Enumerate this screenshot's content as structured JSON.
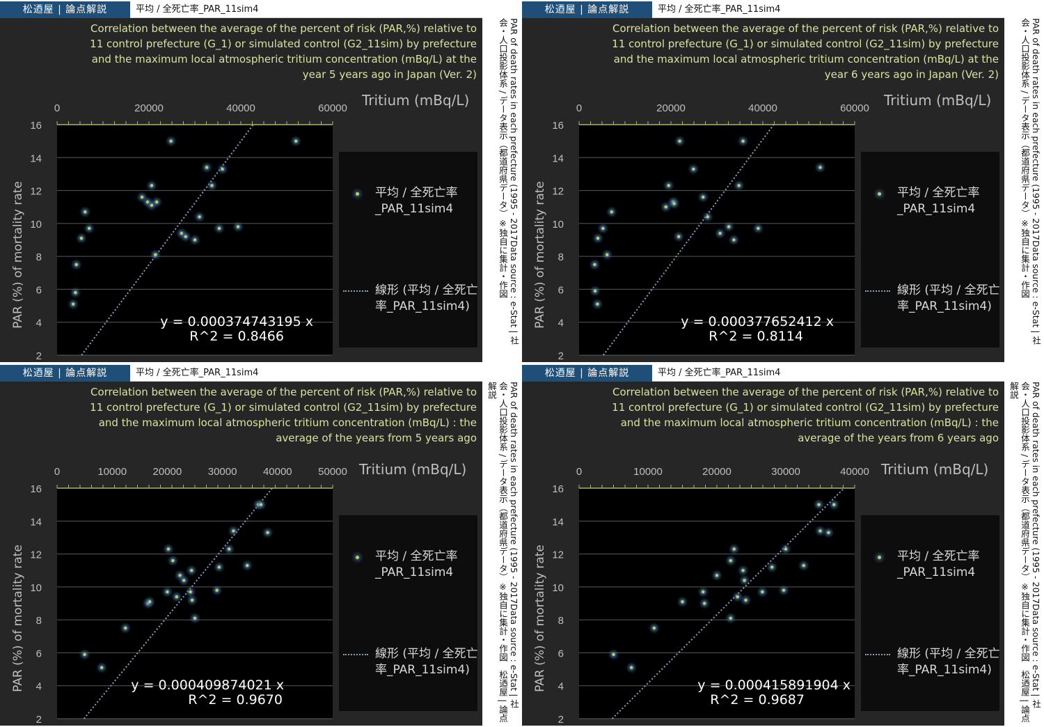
{
  "brand": "松迺屋 | 論点解説",
  "header_title": "平均 / 全死亡率_PAR_11sim4",
  "side_text_a": "PAR of death rates in each prefecture (1995 - 2017Data source : e-Stat | 社会・人口投影体系 / データ表示（都道府県データ）※独自に集計・作図",
  "side_text_b": "PAR of death rates in each prefecture (1995 - 2017Data source : e-Stat | 社会・人口投影体系 / データ表示（都道府県データ）※独自に集計・作図　松迺屋 | 論点解説",
  "legend_series": "平均 / 全死亡率_PAR_11sim4",
  "legend_trend": "線形 (平均 / 全死亡率_PAR_11sim4)",
  "colors": {
    "marker": "#a6d96a",
    "glow": "#4e6fa0",
    "trend": "#8fa0c0",
    "title": "#d7e4a0",
    "plot_bg": "#000000"
  },
  "chart_data": [
    {
      "type": "scatter",
      "title": "Correlation between the average of the percent of risk (PAR,%) relative to 11 control prefecture (G_1) or simulated control (G2_11sim) by prefecture and the maximum local atmospheric tritium concentration (mBq/L) at the year 5 years ago in Japan (Ver. 2)",
      "xlabel": "Tritium (mBq/L)",
      "ylabel": "PAR (%) of mortality rate",
      "xlim": [
        0,
        60000
      ],
      "ylim": [
        2,
        16
      ],
      "xticks": [
        "0",
        "20000",
        "40000",
        "60000"
      ],
      "yticks": [
        "2",
        "4",
        "6",
        "8",
        "10",
        "12",
        "14",
        "16"
      ],
      "trend_equation": "y = 0.000374743195 x",
      "r_squared": "R^2 = 0.8466",
      "slope": 0.000374743195,
      "points": [
        [
          3500,
          5.1
        ],
        [
          4000,
          5.8
        ],
        [
          4200,
          7.5
        ],
        [
          5300,
          9.1
        ],
        [
          6100,
          10.7
        ],
        [
          7000,
          9.7
        ],
        [
          18500,
          11.6
        ],
        [
          19700,
          11.3
        ],
        [
          20600,
          11.1
        ],
        [
          20600,
          12.3
        ],
        [
          21700,
          11.3
        ],
        [
          21400,
          8.1
        ],
        [
          24800,
          15.0
        ],
        [
          27100,
          9.4
        ],
        [
          28000,
          9.2
        ],
        [
          30000,
          9.0
        ],
        [
          31000,
          10.4
        ],
        [
          32600,
          13.4
        ],
        [
          33700,
          12.3
        ],
        [
          35300,
          9.7
        ],
        [
          36000,
          13.3
        ],
        [
          39400,
          9.8
        ],
        [
          52000,
          15.0
        ]
      ]
    },
    {
      "type": "scatter",
      "title": "Correlation between the average of the percent of risk (PAR,%) relative to 11 control prefecture (G_1) or simulated control (G2_11sim) by prefecture and the maximum local atmospheric tritium concentration (mBq/L) at the year 6 years ago in Japan (Ver. 2)",
      "xlabel": "Tritium (mBq/L)",
      "ylabel": "PAR (%) of mortality rate",
      "xlim": [
        0,
        60000
      ],
      "ylim": [
        2,
        16
      ],
      "xticks": [
        "0",
        "20000",
        "40000",
        "60000"
      ],
      "yticks": [
        "2",
        "4",
        "6",
        "8",
        "10",
        "12",
        "14",
        "16"
      ],
      "trend_equation": "y = 0.000377652412 x",
      "r_squared": "R^2 = 0.8114",
      "slope": 0.000377652412,
      "points": [
        [
          3400,
          7.5
        ],
        [
          3500,
          5.9
        ],
        [
          4000,
          5.1
        ],
        [
          4100,
          9.1
        ],
        [
          5200,
          9.7
        ],
        [
          6100,
          8.1
        ],
        [
          7100,
          10.7
        ],
        [
          18900,
          11.0
        ],
        [
          19500,
          12.3
        ],
        [
          20500,
          11.3
        ],
        [
          20700,
          11.2
        ],
        [
          21700,
          9.2
        ],
        [
          21900,
          15.0
        ],
        [
          24900,
          13.3
        ],
        [
          27000,
          11.6
        ],
        [
          28000,
          10.4
        ],
        [
          30700,
          9.4
        ],
        [
          32600,
          9.8
        ],
        [
          33700,
          9.0
        ],
        [
          34800,
          12.3
        ],
        [
          35700,
          15.0
        ],
        [
          39000,
          9.7
        ],
        [
          52500,
          13.4
        ]
      ]
    },
    {
      "type": "scatter",
      "title": "Correlation between the average of the percent of risk (PAR,%) relative to 11 control prefecture (G_1) or simulated control (G2_11sim) by prefecture and the maximum local atmospheric tritium concentration (mBq/L) : the average of the years from 5 years ago",
      "xlabel": "Tritium (mBq/L)",
      "ylabel": "PAR (%) of mortality rate",
      "xlim": [
        0,
        50000
      ],
      "ylim": [
        2,
        16
      ],
      "xticks": [
        "0",
        "10000",
        "20000",
        "30000",
        "40000",
        "50000"
      ],
      "yticks": [
        "2",
        "4",
        "6",
        "8",
        "10",
        "12",
        "14",
        "16"
      ],
      "trend_equation": "y = 0.000409874021 x",
      "r_squared": "R^2 = 0.9670",
      "slope": 0.000409874021,
      "points": [
        [
          5000,
          5.9
        ],
        [
          8100,
          5.1
        ],
        [
          12400,
          7.5
        ],
        [
          16500,
          9.0
        ],
        [
          16800,
          9.1
        ],
        [
          20000,
          9.7
        ],
        [
          20200,
          12.3
        ],
        [
          21000,
          11.6
        ],
        [
          21700,
          9.4
        ],
        [
          22300,
          10.7
        ],
        [
          23000,
          10.4
        ],
        [
          24200,
          9.7
        ],
        [
          24400,
          11.0
        ],
        [
          24500,
          9.2
        ],
        [
          25000,
          8.1
        ],
        [
          29000,
          9.8
        ],
        [
          29400,
          11.2
        ],
        [
          31200,
          12.3
        ],
        [
          32000,
          13.4
        ],
        [
          34500,
          11.3
        ],
        [
          36500,
          15.0
        ],
        [
          37000,
          15.0
        ],
        [
          38200,
          13.3
        ]
      ]
    },
    {
      "type": "scatter",
      "title": "Correlation between the average of the percent of risk (PAR,%) relative to 11 control prefecture (G_1) or simulated control (G2_11sim) by prefecture and the maximum local atmospheric tritium concentration (mBq/L) : the average of the years from 6 years ago",
      "xlabel": "Tritium (mBq/L)",
      "ylabel": "PAR (%) of mortality rate",
      "xlim": [
        0,
        40000
      ],
      "ylim": [
        2,
        16
      ],
      "xticks": [
        "0",
        "10000",
        "20000",
        "30000",
        "40000"
      ],
      "yticks": [
        "2",
        "4",
        "6",
        "8",
        "10",
        "12",
        "14",
        "16"
      ],
      "trend_equation": "y = 0.000415891904 x",
      "r_squared": "R^2 = 0.9687",
      "slope": 0.000415891904,
      "points": [
        [
          5000,
          5.9
        ],
        [
          7600,
          5.1
        ],
        [
          10900,
          7.5
        ],
        [
          15000,
          9.1
        ],
        [
          18200,
          9.0
        ],
        [
          18000,
          9.7
        ],
        [
          20000,
          10.7
        ],
        [
          22000,
          11.6
        ],
        [
          22000,
          8.1
        ],
        [
          22500,
          12.3
        ],
        [
          23000,
          9.4
        ],
        [
          23800,
          11.0
        ],
        [
          24000,
          10.4
        ],
        [
          24200,
          9.2
        ],
        [
          26600,
          9.7
        ],
        [
          28000,
          11.2
        ],
        [
          29700,
          9.8
        ],
        [
          30000,
          12.3
        ],
        [
          32600,
          11.3
        ],
        [
          34800,
          15.0
        ],
        [
          35000,
          13.4
        ],
        [
          36200,
          13.3
        ],
        [
          37000,
          15.0
        ]
      ]
    }
  ]
}
